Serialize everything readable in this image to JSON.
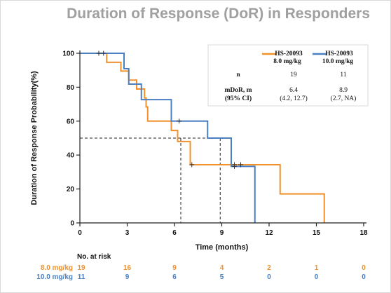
{
  "title": "Duration of Response (DoR) in Responders",
  "colors": {
    "orange": "#f0912c",
    "blue": "#4a7fc1",
    "axis": "#222222"
  },
  "chart_data": {
    "type": "line",
    "subtype": "kaplan-meier-step",
    "xlabel": "Time (months)",
    "ylabel": "Duration of Response Probability(%)",
    "xlim": [
      0,
      18
    ],
    "ylim": [
      0,
      100
    ],
    "xticks": [
      0,
      3,
      6,
      9,
      12,
      15,
      18
    ],
    "yticks": [
      0,
      20,
      40,
      60,
      80,
      100
    ],
    "grid": false,
    "median_reference_y": 50,
    "median_reference_x": [
      6.4,
      8.9
    ],
    "series": [
      {
        "name": "HS-20093 8.0 mg/kg",
        "color": "#f0912c",
        "steps": [
          [
            0,
            100
          ],
          [
            1.7,
            94.7
          ],
          [
            2.6,
            89.5
          ],
          [
            3.1,
            84.2
          ],
          [
            3.6,
            78.9
          ],
          [
            4.1,
            73.7
          ],
          [
            4.2,
            68.4
          ],
          [
            4.3,
            60
          ],
          [
            5.8,
            54.5
          ],
          [
            6.2,
            48
          ],
          [
            7.0,
            34.3
          ],
          [
            12.7,
            17.1
          ],
          [
            15.5,
            0
          ]
        ],
        "censored": [
          [
            7.1,
            34.3
          ],
          [
            9.8,
            34.3
          ],
          [
            10.2,
            34.3
          ]
        ]
      },
      {
        "name": "HS-20093 10.0 mg/kg",
        "color": "#4a7fc1",
        "steps": [
          [
            0,
            100
          ],
          [
            2.8,
            90.9
          ],
          [
            3.1,
            81.8
          ],
          [
            3.9,
            72.7
          ],
          [
            5.8,
            60
          ],
          [
            8.1,
            50
          ],
          [
            9.6,
            33.3
          ],
          [
            11.1,
            0
          ]
        ],
        "censored": [
          [
            1.2,
            100
          ],
          [
            1.5,
            100
          ],
          [
            6.3,
            60
          ],
          [
            9.8,
            33.3
          ]
        ]
      }
    ],
    "legend": {
      "position": "top-right",
      "entries": [
        {
          "line1": "HS-20093",
          "line2": "8.0 mg/kg",
          "color": "#f0912c"
        },
        {
          "line1": "HS-20093",
          "line2": "10.0 mg/kg",
          "color": "#4a7fc1"
        }
      ]
    },
    "table": {
      "rows": [
        {
          "label1": "n",
          "label2": "",
          "v1a": "19",
          "v1b": "",
          "v2a": "11",
          "v2b": ""
        },
        {
          "label1": "mDoR, m",
          "label2": "(95% CI)",
          "v1a": "6.4",
          "v1b": "(4.2, 12.7)",
          "v2a": "8.9",
          "v2b": "(2.7, NA)"
        }
      ]
    },
    "at_risk": {
      "title": "No. at risk",
      "times": [
        0,
        3,
        6,
        9,
        12,
        15,
        18
      ],
      "rows": [
        {
          "label": "8.0 mg/kg",
          "color": "#f0912c",
          "values": [
            19,
            16,
            9,
            4,
            2,
            1,
            0
          ]
        },
        {
          "label": "10.0 mg/kg",
          "color": "#4a7fc1",
          "values": [
            11,
            9,
            6,
            5,
            0,
            0,
            0
          ]
        }
      ]
    }
  }
}
